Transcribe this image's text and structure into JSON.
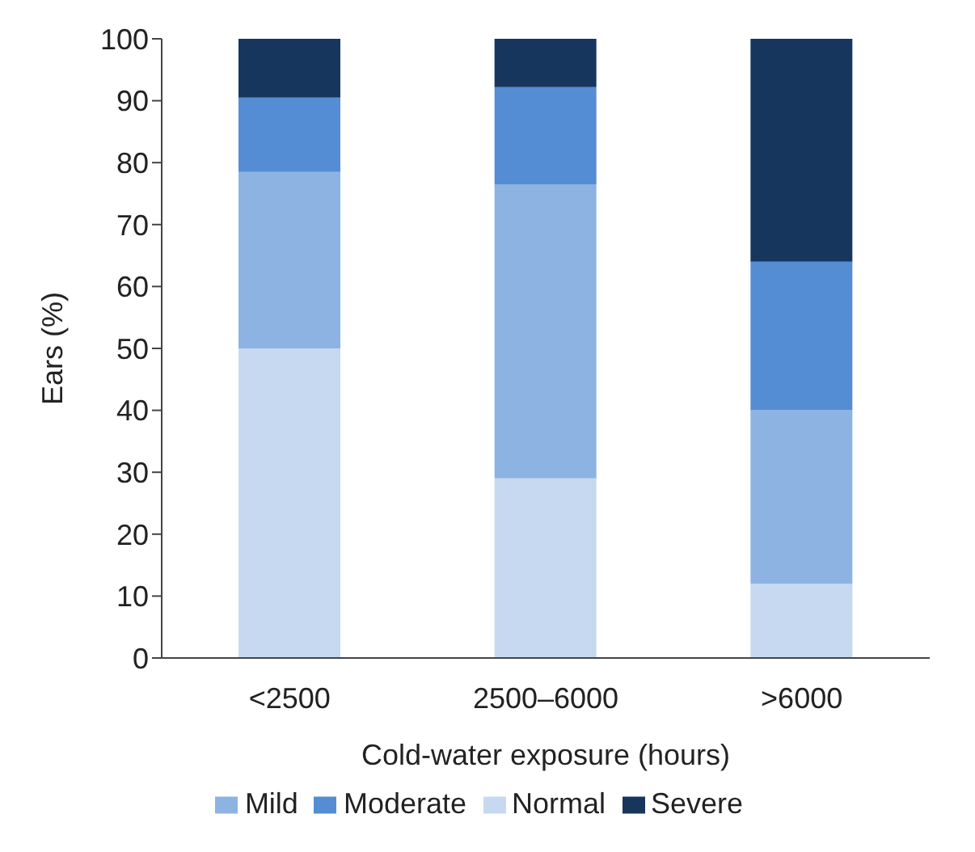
{
  "chart_data": {
    "type": "bar",
    "stacked": true,
    "xlabel": "Cold-water exposure (hours)",
    "ylabel": "Ears (%)",
    "categories": [
      "<2500",
      "2500–6000",
      ">6000"
    ],
    "ylim": [
      0,
      100
    ],
    "yticks": [
      0,
      10,
      20,
      30,
      40,
      50,
      60,
      70,
      80,
      90,
      100
    ],
    "grid": false,
    "legend": "bottom",
    "series": [
      {
        "name": "Normal",
        "color": "#c6d9f1",
        "values": [
          50,
          29,
          12
        ]
      },
      {
        "name": "Mild",
        "color": "#8db3e2",
        "values": [
          28.5,
          47.5,
          28
        ]
      },
      {
        "name": "Moderate",
        "color": "#548dd4",
        "values": [
          12,
          15.7,
          24
        ]
      },
      {
        "name": "Severe",
        "color": "#17365d",
        "values": [
          9.5,
          7.8,
          36
        ]
      }
    ]
  }
}
